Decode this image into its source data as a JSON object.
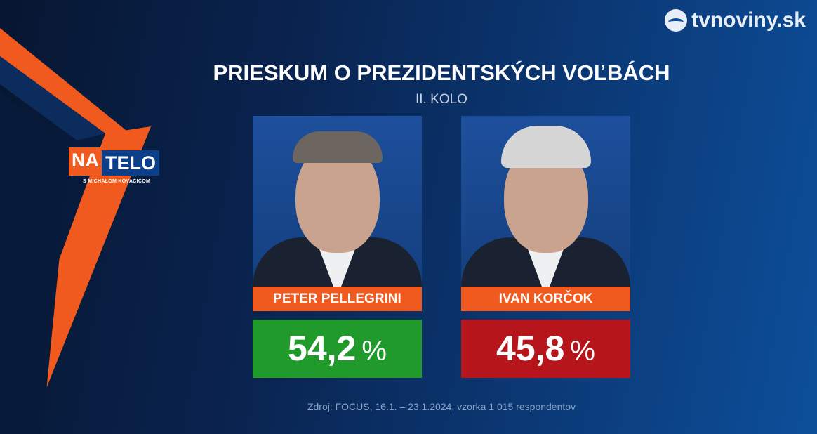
{
  "brand": {
    "logo": "tvnoviny.sk",
    "icon": "tvnoviny-logo-icon"
  },
  "show": {
    "na": "NA",
    "telo": "TELO",
    "subtitle": "S MICHALOM KOVAČIČOM"
  },
  "title": "PRIESKUM O PREZIDENTSKÝCH VOĽBÁCH",
  "subtitle": "II. KOLO",
  "candidates": [
    {
      "name": "PETER PELLEGRINI",
      "value": "54,2",
      "unit": "%",
      "color": "#1f9a2b"
    },
    {
      "name": "IVAN KORČOK",
      "value": "45,8",
      "unit": "%",
      "color": "#b5151b"
    }
  ],
  "source": "Zdroj: FOCUS, 16.1. – 23.1.2024, vzorka 1 015 respondentov",
  "colors": {
    "accent": "#f05a1e",
    "background": "#0a2450"
  }
}
